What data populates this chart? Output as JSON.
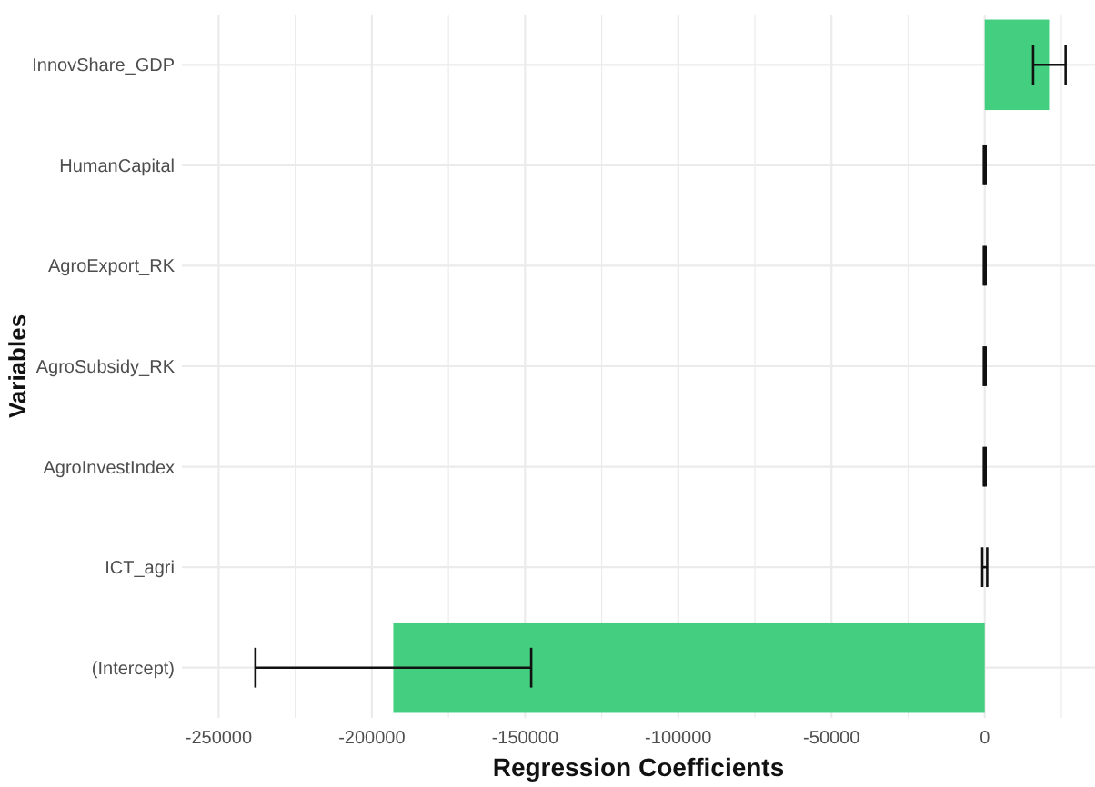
{
  "chart_data": {
    "type": "bar",
    "orientation": "horizontal",
    "xlabel": "Regression Coefficients",
    "ylabel": "Variables",
    "categories": [
      "InnovShare_GDP",
      "HumanCapital",
      "AgroExport_RK",
      "AgroSubsidy_RK",
      "AgroInvestIndex",
      "ICT_agri",
      "(Intercept)"
    ],
    "values": [
      21000,
      0,
      0,
      0,
      0,
      0,
      -193000
    ],
    "errors": [
      [
        15800,
        26400
      ],
      300,
      300,
      300,
      300,
      800,
      [
        -238000,
        -148000
      ]
    ],
    "color": "#44ce80",
    "xlim": [
      -262000,
      36000
    ],
    "xticks": [
      -250000,
      {
        "value": -225000,
        "label": null
      },
      -200000,
      {
        "value": -175000,
        "label": null
      },
      -150000,
      {
        "value": -125000,
        "label": null
      },
      -100000,
      {
        "value": -75000,
        "label": null
      },
      -50000,
      {
        "value": -25000,
        "label": null
      },
      0,
      {
        "value": 25000,
        "label": null
      }
    ],
    "grid": true
  }
}
